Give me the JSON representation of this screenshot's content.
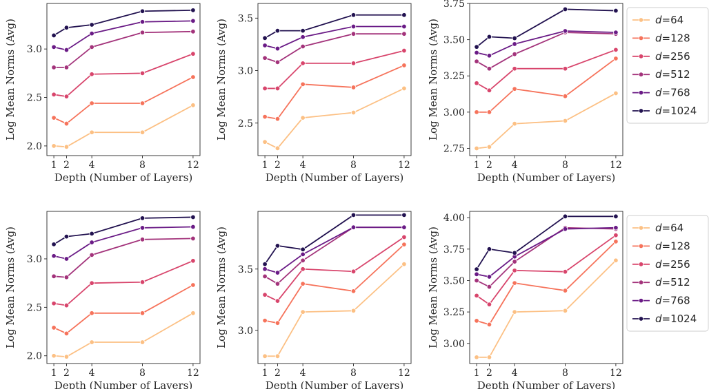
{
  "legend": {
    "prefix": "d",
    "entries": [
      "=64",
      "=128",
      "=256",
      "=512",
      "=768",
      "=1024"
    ]
  },
  "colors": [
    "#fcc084",
    "#f6735b",
    "#d8456c",
    "#a3337b",
    "#6a1b86",
    "#221250"
  ],
  "chart_data": [
    {
      "type": "line",
      "xlabel": "Depth (Number of Layers)",
      "ylabel": "Log Mean Norms (Avg)",
      "x": [
        1,
        2,
        4,
        8,
        12
      ],
      "xticks": [
        "1",
        "2",
        "4",
        "8",
        "12"
      ],
      "ylim": [
        1.9,
        3.47
      ],
      "yticks": [
        2.0,
        2.5,
        3.0
      ],
      "ytick_labels": [
        "2.0",
        "2.5",
        "3.0"
      ],
      "series": [
        {
          "name": "d=64",
          "values": [
            2.0,
            1.99,
            2.14,
            2.14,
            2.42
          ]
        },
        {
          "name": "d=128",
          "values": [
            2.29,
            2.23,
            2.44,
            2.44,
            2.71
          ]
        },
        {
          "name": "d=256",
          "values": [
            2.53,
            2.51,
            2.74,
            2.75,
            2.95
          ]
        },
        {
          "name": "d=512",
          "values": [
            2.81,
            2.81,
            3.02,
            3.17,
            3.18
          ]
        },
        {
          "name": "d=768",
          "values": [
            3.02,
            2.99,
            3.16,
            3.28,
            3.29
          ]
        },
        {
          "name": "d=1024",
          "values": [
            3.14,
            3.22,
            3.25,
            3.39,
            3.4
          ]
        }
      ]
    },
    {
      "type": "line",
      "xlabel": "Depth (Number of Layers)",
      "ylabel": "Log Mean Norms (Avg)",
      "x": [
        1,
        2,
        4,
        8,
        12
      ],
      "xticks": [
        "1",
        "2",
        "4",
        "8",
        "12"
      ],
      "ylim": [
        2.19,
        3.64
      ],
      "yticks": [
        2.5,
        3.0,
        3.5
      ],
      "ytick_labels": [
        "2.5",
        "3.0",
        "3.5"
      ],
      "series": [
        {
          "name": "d=64",
          "values": [
            2.32,
            2.26,
            2.55,
            2.6,
            2.83
          ]
        },
        {
          "name": "d=128",
          "values": [
            2.56,
            2.54,
            2.87,
            2.84,
            3.05
          ]
        },
        {
          "name": "d=256",
          "values": [
            2.83,
            2.83,
            3.07,
            3.07,
            3.19
          ]
        },
        {
          "name": "d=512",
          "values": [
            3.12,
            3.08,
            3.23,
            3.35,
            3.35
          ]
        },
        {
          "name": "d=768",
          "values": [
            3.24,
            3.21,
            3.32,
            3.42,
            3.42
          ]
        },
        {
          "name": "d=1024",
          "values": [
            3.31,
            3.38,
            3.38,
            3.53,
            3.53
          ]
        }
      ]
    },
    {
      "type": "line",
      "xlabel": "Depth (Number of Layers)",
      "ylabel": "Log Mean Norms (Avg)",
      "x": [
        1,
        2,
        4,
        8,
        12
      ],
      "xticks": [
        "1",
        "2",
        "4",
        "8",
        "12"
      ],
      "ylim": [
        2.7,
        3.75
      ],
      "yticks": [
        2.75,
        3.0,
        3.25,
        3.5,
        3.75
      ],
      "ytick_labels": [
        "2.75",
        "3.00",
        "3.25",
        "3.50",
        "3.75"
      ],
      "series": [
        {
          "name": "d=64",
          "values": [
            2.75,
            2.76,
            2.92,
            2.94,
            3.13
          ]
        },
        {
          "name": "d=128",
          "values": [
            3.0,
            3.0,
            3.16,
            3.11,
            3.37
          ]
        },
        {
          "name": "d=256",
          "values": [
            3.2,
            3.15,
            3.3,
            3.3,
            3.43
          ]
        },
        {
          "name": "d=512",
          "values": [
            3.35,
            3.3,
            3.4,
            3.55,
            3.54
          ]
        },
        {
          "name": "d=768",
          "values": [
            3.41,
            3.39,
            3.47,
            3.56,
            3.55
          ]
        },
        {
          "name": "d=1024",
          "values": [
            3.45,
            3.52,
            3.51,
            3.71,
            3.7
          ]
        }
      ]
    },
    {
      "type": "line",
      "xlabel": "Depth (Number of Layers)",
      "ylabel": "Log Mean Norms (Avg)",
      "x": [
        1,
        2,
        4,
        8,
        12
      ],
      "xticks": [
        "1",
        "2",
        "4",
        "8",
        "12"
      ],
      "ylim": [
        1.92,
        3.49
      ],
      "yticks": [
        2.0,
        2.5,
        3.0
      ],
      "ytick_labels": [
        "2.0",
        "2.5",
        "3.0"
      ],
      "series": [
        {
          "name": "d=64",
          "values": [
            2.0,
            1.99,
            2.14,
            2.14,
            2.44
          ]
        },
        {
          "name": "d=128",
          "values": [
            2.29,
            2.23,
            2.44,
            2.44,
            2.73
          ]
        },
        {
          "name": "d=256",
          "values": [
            2.54,
            2.52,
            2.75,
            2.76,
            2.98
          ]
        },
        {
          "name": "d=512",
          "values": [
            2.82,
            2.81,
            3.04,
            3.2,
            3.21
          ]
        },
        {
          "name": "d=768",
          "values": [
            3.03,
            3.0,
            3.17,
            3.32,
            3.33
          ]
        },
        {
          "name": "d=1024",
          "values": [
            3.15,
            3.23,
            3.26,
            3.42,
            3.43
          ]
        }
      ]
    },
    {
      "type": "line",
      "xlabel": "Depth (Number of Layers)",
      "ylabel": "Log Mean Norms (Avg)",
      "x": [
        1,
        2,
        4,
        8,
        12
      ],
      "xticks": [
        "1",
        "2",
        "4",
        "8",
        "12"
      ],
      "ylim": [
        2.73,
        3.97
      ],
      "yticks": [
        3.0,
        3.5
      ],
      "ytick_labels": [
        "3.0",
        "3.5"
      ],
      "series": [
        {
          "name": "d=64",
          "values": [
            2.79,
            2.79,
            3.15,
            3.16,
            3.54
          ]
        },
        {
          "name": "d=128",
          "values": [
            3.08,
            3.06,
            3.38,
            3.32,
            3.7
          ]
        },
        {
          "name": "d=256",
          "values": [
            3.29,
            3.24,
            3.5,
            3.48,
            3.76
          ]
        },
        {
          "name": "d=512",
          "values": [
            3.44,
            3.38,
            3.57,
            3.84,
            3.84
          ]
        },
        {
          "name": "d=768",
          "values": [
            3.5,
            3.47,
            3.62,
            3.84,
            3.84
          ]
        },
        {
          "name": "d=1024",
          "values": [
            3.54,
            3.69,
            3.66,
            3.94,
            3.94
          ]
        }
      ]
    },
    {
      "type": "line",
      "xlabel": "Depth (Number of Layers)",
      "ylabel": "Log Mean Norms (Avg)",
      "x": [
        1,
        2,
        4,
        8,
        12
      ],
      "xticks": [
        "1",
        "2",
        "4",
        "8",
        "12"
      ],
      "ylim": [
        2.84,
        4.05
      ],
      "yticks": [
        3.0,
        3.25,
        3.5,
        3.75,
        4.0
      ],
      "ytick_labels": [
        "3.00",
        "3.25",
        "3.50",
        "3.75",
        "4.00"
      ],
      "series": [
        {
          "name": "d=64",
          "values": [
            2.89,
            2.89,
            3.25,
            3.26,
            3.66
          ]
        },
        {
          "name": "d=128",
          "values": [
            3.18,
            3.15,
            3.48,
            3.42,
            3.81
          ]
        },
        {
          "name": "d=256",
          "values": [
            3.38,
            3.31,
            3.58,
            3.57,
            3.86
          ]
        },
        {
          "name": "d=512",
          "values": [
            3.5,
            3.45,
            3.65,
            3.92,
            3.91
          ]
        },
        {
          "name": "d=768",
          "values": [
            3.55,
            3.53,
            3.69,
            3.91,
            3.92
          ]
        },
        {
          "name": "d=1024",
          "values": [
            3.59,
            3.75,
            3.72,
            4.01,
            4.01
          ]
        }
      ]
    }
  ]
}
